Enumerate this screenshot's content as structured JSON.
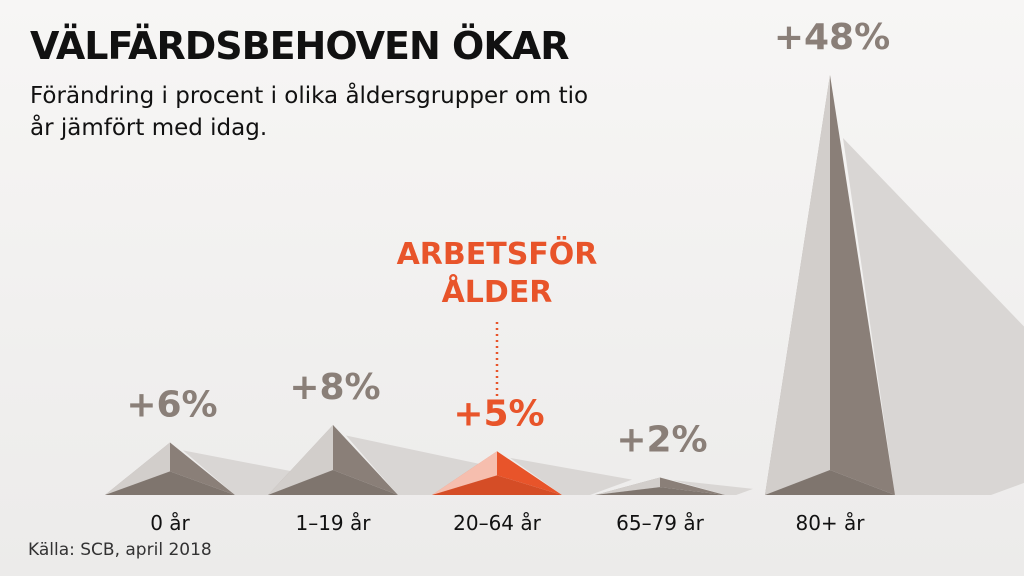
{
  "chart_data": {
    "type": "pyramid",
    "title": "VÄLFÄRDSBEHOVEN ÖKAR",
    "subtitle": "Förändring i procent i olika åldersgrupper om tio år jämfört med idag.",
    "categories": [
      "0 år",
      "1–19 år",
      "20–64 år",
      "65–79 år",
      "80+ år"
    ],
    "values": [
      6,
      8,
      5,
      2,
      48
    ],
    "value_labels": [
      "+6%",
      "+8%",
      "+5%",
      "+2%",
      "+48%"
    ],
    "colors": [
      "#8a7f78",
      "#8a7f78",
      "#e8542a",
      "#8a7f78",
      "#8a7f78"
    ],
    "annotation": "ARBETSFÖR ÅLDER",
    "source": "Källa: SCB, april 2018"
  }
}
